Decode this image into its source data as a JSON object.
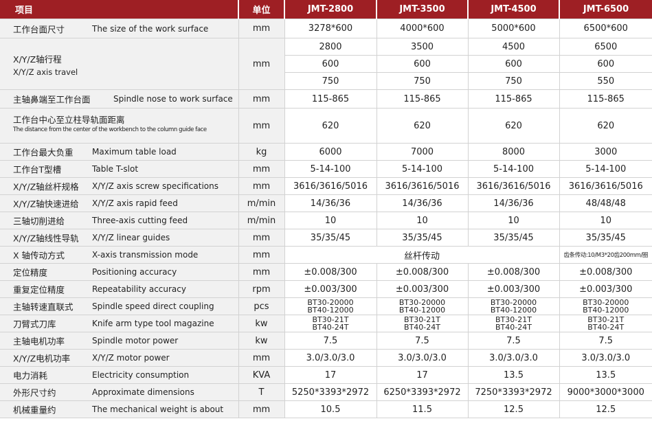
{
  "header": {
    "item": "项目",
    "unit": "单位",
    "models": [
      "JMT-2800",
      "JMT-3500",
      "JMT-4500",
      "JMT-6500"
    ]
  },
  "rows": [
    {
      "zh": "工作台面尺寸",
      "en": "The size of the work surface",
      "unit": "mm",
      "values": [
        "3278*600",
        "4000*600",
        "5000*600",
        "6500*600"
      ]
    },
    {
      "zh": "X/Y/Z轴行程",
      "en": "X/Y/Z axis travel",
      "unit": "mm",
      "values_x": [
        "2800",
        "3500",
        "4500",
        "6500"
      ],
      "values_y": [
        "600",
        "600",
        "600",
        "600"
      ],
      "values_z": [
        "750",
        "750",
        "750",
        "550"
      ]
    },
    {
      "zh": "主轴鼻端至工作台面",
      "en": "Spindle nose to work surface",
      "unit": "mm",
      "values": [
        "115-865",
        "115-865",
        "115-865",
        "115-865"
      ]
    },
    {
      "zh": "工作台中心至立柱导轨面距离",
      "en": "The distance from the center of the workbench to the column guide face",
      "unit": "mm",
      "values": [
        "620",
        "620",
        "620",
        "620"
      ]
    },
    {
      "zh": "工作台最大负重",
      "en": "Maximum table load",
      "unit": "kg",
      "values": [
        "6000",
        "7000",
        "8000",
        "3000"
      ]
    },
    {
      "zh": "工作台T型槽",
      "en": "Table T-slot",
      "unit": "mm",
      "values": [
        "5-14-100",
        "5-14-100",
        "5-14-100",
        "5-14-100"
      ]
    },
    {
      "zh": "X/Y/Z轴丝杆规格",
      "en": "X/Y/Z axis screw specifications",
      "unit": "mm",
      "values": [
        "3616/3616/5016",
        "3616/3616/5016",
        "3616/3616/5016",
        "3616/3616/5016"
      ]
    },
    {
      "zh": "X/Y/Z轴快速进给",
      "en": "X/Y/Z axis rapid feed",
      "unit": "m/min",
      "values": [
        "14/36/36",
        "14/36/36",
        "14/36/36",
        "48/48/48"
      ]
    },
    {
      "zh": "三轴切削进给",
      "en": "Three-axis cutting feed",
      "unit": "m/min",
      "values": [
        "10",
        "10",
        "10",
        "10"
      ]
    },
    {
      "zh": "X/Y/Z轴线性导轨",
      "en": "X/Y/Z linear guides",
      "unit": "mm",
      "values": [
        "35/35/45",
        "35/35/45",
        "35/35/45",
        "35/35/45"
      ]
    },
    {
      "zh": "X 轴传动方式",
      "en": "X-axis transmission mode",
      "unit": "mm",
      "merged": "丝杆传动",
      "last": "齿条传动:10/M3*20齿200mm/圈"
    },
    {
      "zh": "定位精度",
      "en": "Positioning accuracy",
      "unit": "mm",
      "values": [
        "±0.008/300",
        "±0.008/300",
        "±0.008/300",
        "±0.008/300"
      ]
    },
    {
      "zh": "重复定位精度",
      "en": "Repeatability accuracy",
      "unit": "rpm",
      "values": [
        "±0.003/300",
        "±0.003/300",
        "±0.003/300",
        "±0.003/300"
      ]
    },
    {
      "zh": "主轴转速直联式",
      "en": "Spindle speed direct coupling",
      "unit": "pcs",
      "line1": "BT30-20000",
      "line2": "BT40-12000"
    },
    {
      "zh": "刀臂式刀库",
      "en": "Knife arm type tool magazine",
      "unit": "kw",
      "line1": "BT30-21T",
      "line2": "BT40-24T"
    },
    {
      "zh": "主轴电机功率",
      "en": "Spindle motor power",
      "unit": "kw",
      "values": [
        "7.5",
        "7.5",
        "7.5",
        "7.5"
      ]
    },
    {
      "zh": "X/Y/Z电机功率",
      "en": "X/Y/Z motor power",
      "unit": "mm",
      "values": [
        "3.0/3.0/3.0",
        "3.0/3.0/3.0",
        "3.0/3.0/3.0",
        "3.0/3.0/3.0"
      ]
    },
    {
      "zh": "电力消耗",
      "en": "Electricity consumption",
      "unit": "KVA",
      "values": [
        "17",
        "17",
        "13.5",
        "13.5"
      ]
    },
    {
      "zh": "外形尺寸约",
      "en": "Approximate dimensions",
      "unit": "T",
      "values": [
        "5250*3393*2972",
        "6250*3393*2972",
        "7250*3393*2972",
        "9000*3000*3000"
      ]
    },
    {
      "zh": "机械重量约",
      "en": "The mechanical weight is about",
      "unit": "mm",
      "values": [
        "10.5",
        "11.5",
        "12.5",
        "12.5"
      ]
    }
  ]
}
